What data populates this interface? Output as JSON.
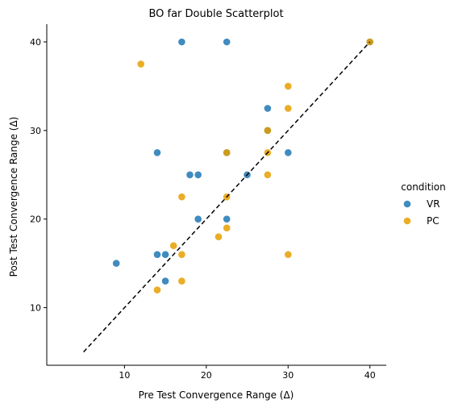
{
  "chart_data": {
    "type": "scatter",
    "title": "BO far Double Scatterplot",
    "xlabel": "Pre Test Convergence Range (Δ)",
    "ylabel": "Post Test Convergence Range (Δ)",
    "xlim": [
      0.5,
      42
    ],
    "ylim": [
      3.5,
      42
    ],
    "xticks": [
      "10",
      "20",
      "30",
      "40"
    ],
    "yticks": [
      "10",
      "20",
      "30",
      "40"
    ],
    "reference_line": {
      "style": "dashed",
      "color": "#000000",
      "from": [
        5,
        5
      ],
      "to": [
        40,
        40
      ]
    },
    "legend": {
      "title": "condition",
      "placement": "right"
    },
    "series": [
      {
        "name": "VR",
        "color": "#1f77b4",
        "points": [
          [
            17,
            40
          ],
          [
            22.5,
            40
          ],
          [
            40,
            40
          ],
          [
            27.5,
            32.5
          ],
          [
            27.5,
            30
          ],
          [
            14,
            27.5
          ],
          [
            22.5,
            27.5
          ],
          [
            30,
            27.5
          ],
          [
            18,
            25
          ],
          [
            19,
            25
          ],
          [
            25,
            25
          ],
          [
            19,
            20
          ],
          [
            22.5,
            20
          ],
          [
            9,
            15
          ],
          [
            14,
            16
          ],
          [
            15,
            16
          ],
          [
            15,
            13
          ]
        ]
      },
      {
        "name": "PC",
        "color": "#e69f00",
        "points": [
          [
            12,
            37.5
          ],
          [
            40,
            40
          ],
          [
            30,
            35
          ],
          [
            30,
            32.5
          ],
          [
            27.5,
            30
          ],
          [
            22.5,
            27.5
          ],
          [
            27.5,
            27.5
          ],
          [
            27.5,
            25
          ],
          [
            17,
            22.5
          ],
          [
            22.5,
            22.5
          ],
          [
            21.5,
            18
          ],
          [
            22.5,
            19
          ],
          [
            16,
            17
          ],
          [
            17,
            16
          ],
          [
            30,
            16
          ],
          [
            14,
            12
          ],
          [
            17,
            13
          ]
        ]
      }
    ]
  }
}
